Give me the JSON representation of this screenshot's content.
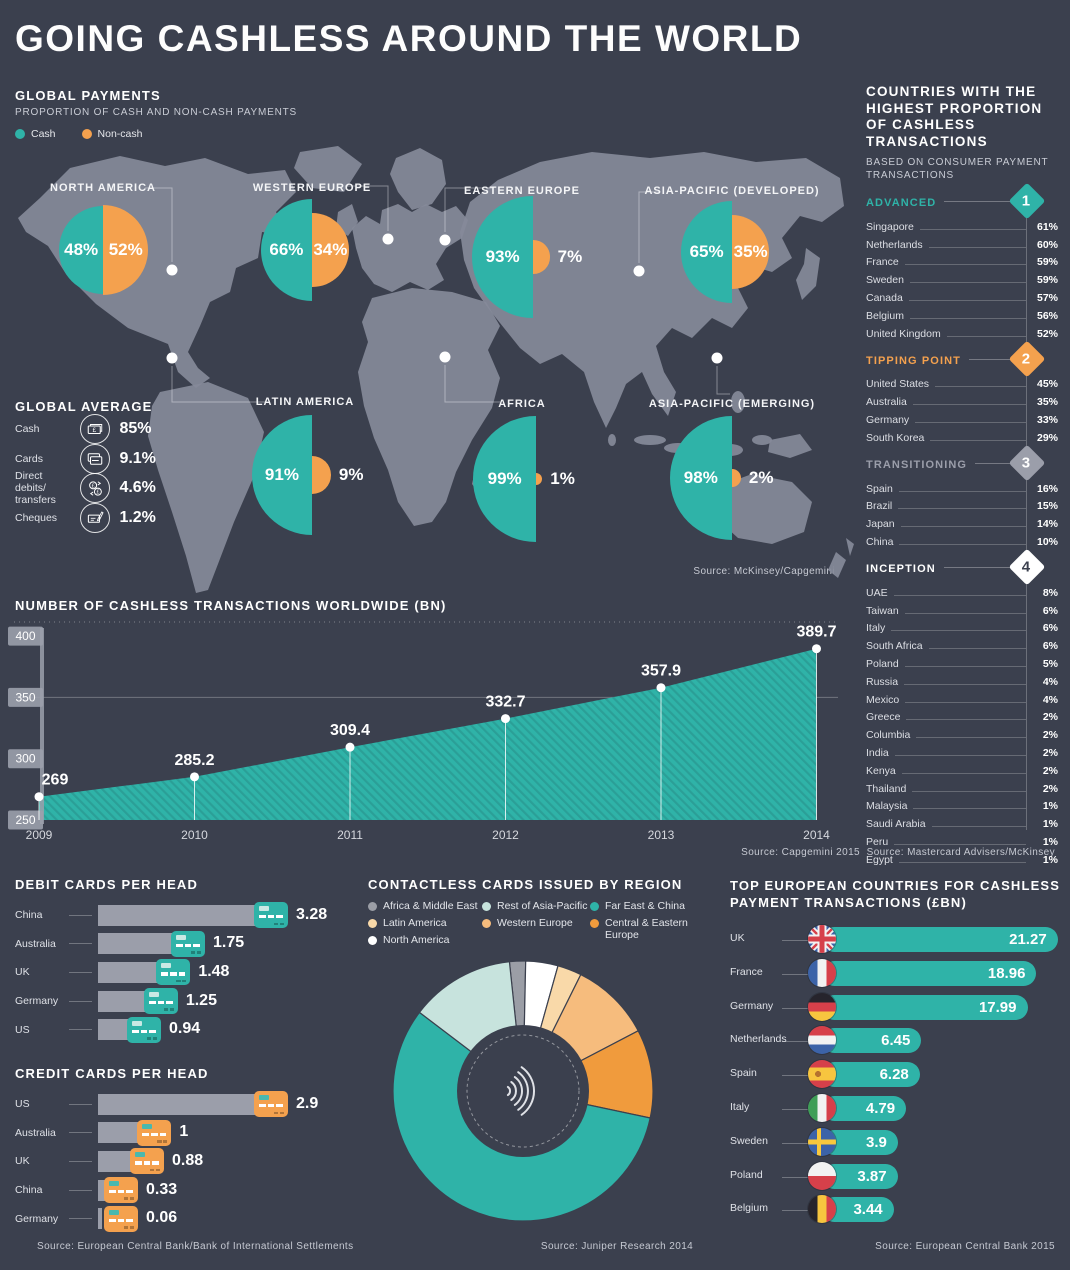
{
  "title": "GOING CASHLESS AROUND THE WORLD",
  "colors": {
    "background": "#3B404E",
    "cash_teal": "#2FB3A8",
    "noncash_orange": "#F4A14E",
    "map_land": "#868A99",
    "bar_gray": "#9B9EAA"
  },
  "global_payments": {
    "title": "GLOBAL PAYMENTS",
    "subtitle": "PROPORTION OF CASH AND NON-CASH PAYMENTS",
    "legend": [
      {
        "label": "Cash",
        "color": "#2FB3A8"
      },
      {
        "label": "Non-cash",
        "color": "#F4A14E"
      }
    ],
    "source": "Source: McKinsey/Capgemini"
  },
  "global_average": {
    "title": "GLOBAL AVERAGE",
    "rows": [
      {
        "label": "Cash",
        "icon": "banknote-icon",
        "value": "85%"
      },
      {
        "label": "Cards",
        "icon": "cards-icon",
        "value": "9.1%"
      },
      {
        "label": "Direct debits/ transfers",
        "icon": "transfers-icon",
        "value": "4.6%"
      },
      {
        "label": "Cheques",
        "icon": "cheque-icon",
        "value": "1.2%"
      }
    ]
  },
  "ranking": {
    "title": "COUNTRIES WITH THE HIGHEST PROPORTION OF CASHLESS TRANSACTIONS",
    "subtitle": "BASED ON CONSUMER PAYMENT TRANSACTIONS",
    "source": "Source: Mastercard Advisers/McKinsey",
    "groups": [
      {
        "label": "ADVANCED",
        "badge": "1",
        "color": "#2FB3A8",
        "items": [
          {
            "name": "Singapore",
            "value": "61%"
          },
          {
            "name": "Netherlands",
            "value": "60%"
          },
          {
            "name": "France",
            "value": "59%"
          },
          {
            "name": "Sweden",
            "value": "59%"
          },
          {
            "name": "Canada",
            "value": "57%"
          },
          {
            "name": "Belgium",
            "value": "56%"
          },
          {
            "name": "United Kingdom",
            "value": "52%"
          }
        ]
      },
      {
        "label": "TIPPING POINT",
        "badge": "2",
        "color": "#F4A14E",
        "items": [
          {
            "name": "United States",
            "value": "45%"
          },
          {
            "name": "Australia",
            "value": "35%"
          },
          {
            "name": "Germany",
            "value": "33%"
          },
          {
            "name": "South Korea",
            "value": "29%"
          }
        ]
      },
      {
        "label": "TRANSITIONING",
        "badge": "3",
        "color": "#9B9EAA",
        "items": [
          {
            "name": "Spain",
            "value": "16%"
          },
          {
            "name": "Brazil",
            "value": "15%"
          },
          {
            "name": "Japan",
            "value": "14%"
          },
          {
            "name": "China",
            "value": "10%"
          }
        ]
      },
      {
        "label": "INCEPTION",
        "badge": "4",
        "color": "#FFFFFF",
        "items": [
          {
            "name": "UAE",
            "value": "8%"
          },
          {
            "name": "Taiwan",
            "value": "6%"
          },
          {
            "name": "Italy",
            "value": "6%"
          },
          {
            "name": "South Africa",
            "value": "6%"
          },
          {
            "name": "Poland",
            "value": "5%"
          },
          {
            "name": "Russia",
            "value": "4%"
          },
          {
            "name": "Mexico",
            "value": "4%"
          },
          {
            "name": "Greece",
            "value": "2%"
          },
          {
            "name": "Columbia",
            "value": "2%"
          },
          {
            "name": "India",
            "value": "2%"
          },
          {
            "name": "Kenya",
            "value": "2%"
          },
          {
            "name": "Thailand",
            "value": "2%"
          },
          {
            "name": "Malaysia",
            "value": "1%"
          },
          {
            "name": "Saudi Arabia",
            "value": "1%"
          },
          {
            "name": "Peru",
            "value": "1%"
          },
          {
            "name": "Egypt",
            "value": "1%"
          }
        ]
      }
    ]
  },
  "chart_data": [
    {
      "id": "regional_cash_vs_noncash",
      "type": "pie",
      "title": "GLOBAL PAYMENTS - PROPORTION OF CASH AND NON-CASH PAYMENTS",
      "series_labels": [
        "Cash",
        "Non-cash"
      ],
      "regions": [
        {
          "name": "NORTH AMERICA",
          "cash": 48,
          "noncash": 52
        },
        {
          "name": "WESTERN EUROPE",
          "cash": 66,
          "noncash": 34
        },
        {
          "name": "EASTERN EUROPE",
          "cash": 93,
          "noncash": 7
        },
        {
          "name": "ASIA-PACIFIC (DEVELOPED)",
          "cash": 65,
          "noncash": 35
        },
        {
          "name": "LATIN AMERICA",
          "cash": 91,
          "noncash": 9
        },
        {
          "name": "AFRICA",
          "cash": 99,
          "noncash": 1
        },
        {
          "name": "ASIA-PACIFIC (EMERGING)",
          "cash": 98,
          "noncash": 2
        }
      ]
    },
    {
      "id": "cashless_transactions_worldwide",
      "type": "area",
      "title": "NUMBER OF CASHLESS TRANSACTIONS WORLDWIDE (BN)",
      "x": [
        2009,
        2010,
        2011,
        2012,
        2013,
        2014
      ],
      "values": [
        269,
        285.2,
        309.4,
        332.7,
        357.9,
        389.7
      ],
      "ylim": [
        250,
        400
      ],
      "yticks": [
        250,
        300,
        350,
        400
      ],
      "grid": "line at 350, dotted top rule",
      "color": "#2FB3A8",
      "source": "Source: Capgemini 2015"
    },
    {
      "id": "debit_cards_per_head",
      "type": "bar",
      "title": "DEBIT CARDS PER HEAD",
      "categories": [
        "China",
        "Australia",
        "UK",
        "Germany",
        "US"
      ],
      "values": [
        3.28,
        1.75,
        1.48,
        1.25,
        0.94
      ],
      "accent": "#2FB3A8"
    },
    {
      "id": "credit_cards_per_head",
      "type": "bar",
      "title": "CREDIT CARDS PER HEAD",
      "categories": [
        "US",
        "Australia",
        "UK",
        "China",
        "Germany"
      ],
      "values": [
        2.9,
        1,
        0.88,
        0.33,
        0.06
      ],
      "accent": "#F4A14E",
      "source": "Source: European Central Bank/Bank of International Settlements"
    },
    {
      "id": "contactless_cards_by_region",
      "type": "pie",
      "title": "CONTACTLESS CARDS ISSUED BY REGION",
      "slices": [
        {
          "label": "Africa & Middle East",
          "color": "#9B9EA6",
          "value": 2
        },
        {
          "label": "North America",
          "color": "#FFFFFF",
          "value": 4
        },
        {
          "label": "Latin America",
          "color": "#F9D9A9",
          "value": 3
        },
        {
          "label": "Western Europe",
          "color": "#F6BC7D",
          "value": 10
        },
        {
          "label": "Central & Eastern Europe",
          "color": "#F09B3D",
          "value": 11
        },
        {
          "label": "Far East & China",
          "color": "#2FB3A8",
          "value": 57
        },
        {
          "label": "Rest of Asia-Pacific",
          "color": "#C7E3DD",
          "value": 13
        }
      ],
      "legend": [
        {
          "label": "Africa & Middle East",
          "color": "#9B9EA6"
        },
        {
          "label": "Rest of Asia-Pacific",
          "color": "#C7E3DD"
        },
        {
          "label": "Far East & China",
          "color": "#2FB3A8"
        },
        {
          "label": "Latin America",
          "color": "#F9D9A9"
        },
        {
          "label": "Western Europe",
          "color": "#F6BC7D"
        },
        {
          "label": "Central & Eastern Europe",
          "color": "#F09B3D"
        },
        {
          "label": "North America",
          "color": "#FFFFFF"
        }
      ],
      "source": "Source: Juniper Research 2014"
    },
    {
      "id": "top_european_cashless",
      "type": "bar",
      "title": "TOP EUROPEAN COUNTRIES FOR CASHLESS PAYMENT TRANSACTIONS (£BN)",
      "categories": [
        "UK",
        "France",
        "Germany",
        "Netherlands",
        "Spain",
        "Italy",
        "Sweden",
        "Poland",
        "Belgium"
      ],
      "values": [
        21.27,
        18.96,
        17.99,
        6.45,
        6.28,
        4.79,
        3.9,
        3.87,
        3.44
      ],
      "flags": [
        "uk",
        "france",
        "germany",
        "netherlands",
        "spain",
        "italy",
        "sweden",
        "poland",
        "belgium"
      ],
      "accent": "#2FB3A8",
      "source": "Source: European Central Bank 2015"
    }
  ]
}
